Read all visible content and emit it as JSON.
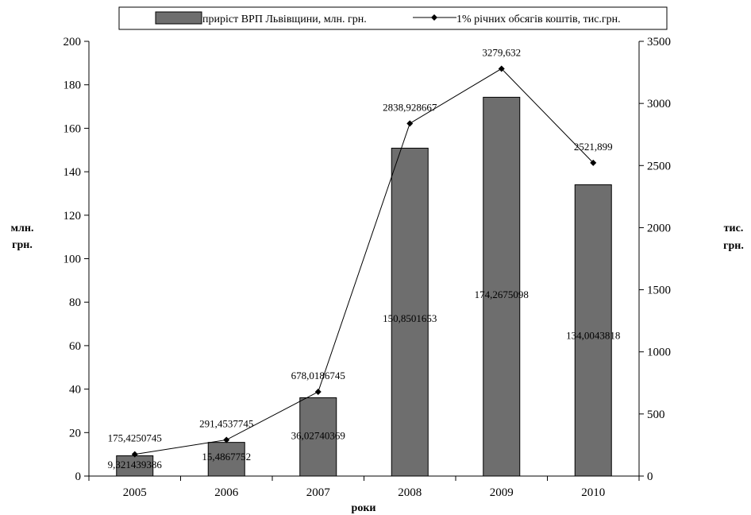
{
  "chart_data": {
    "type": "bar",
    "categories": [
      "2005",
      "2006",
      "2007",
      "2008",
      "2009",
      "2010"
    ],
    "series": [
      {
        "name": "приріст ВРП Львівщини, млн. грн.",
        "type": "bar",
        "axis": "left",
        "values": [
          9.321439386,
          15.4867752,
          36.02740369,
          150.8501653,
          174.2675098,
          134.0043818
        ],
        "labels": [
          "9,321439386",
          "15,4867752",
          "36,02740369",
          "150,8501653",
          "174,2675098",
          "134,0043818"
        ],
        "color": "#6e6e6e"
      },
      {
        "name": "1% річних обсягів коштів, тис.грн.",
        "type": "line",
        "axis": "right",
        "values": [
          175.4250745,
          291.4537745,
          678.0186745,
          2838.928667,
          3279.632,
          2521.899
        ],
        "labels": [
          "175,4250745",
          "291,4537745",
          "678,0186745",
          "2838,928667",
          "3279,632",
          "2521,899"
        ],
        "color": "#000000"
      }
    ],
    "xlabel": "роки",
    "ylabel": [
      "млн.",
      "грн."
    ],
    "y2label": [
      "тис.",
      "грн."
    ],
    "ylim": [
      0,
      200
    ],
    "y2lim": [
      0,
      3500
    ],
    "yticks": [
      0,
      20,
      40,
      60,
      80,
      100,
      120,
      140,
      160,
      180,
      200
    ],
    "y2ticks": [
      0,
      500,
      1000,
      1500,
      2000,
      2500,
      3000,
      3500
    ],
    "grid": false,
    "legend_position": "top"
  }
}
